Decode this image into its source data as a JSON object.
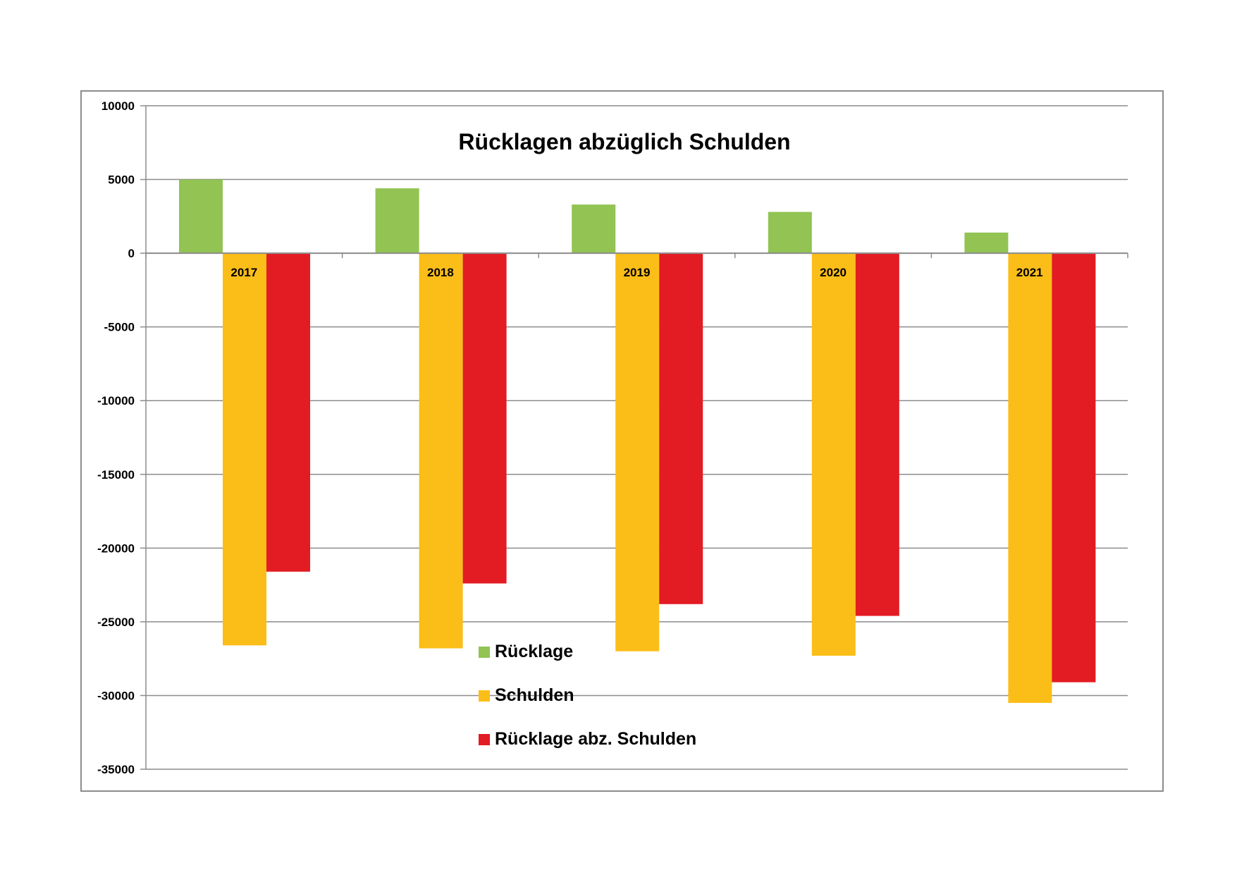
{
  "chart_data": {
    "type": "bar",
    "title": "Rücklagen abzüglich Schulden",
    "xlabel": "",
    "ylabel": "",
    "categories": [
      "2017",
      "2018",
      "2019",
      "2020",
      "2021"
    ],
    "series": [
      {
        "name": "Rücklage",
        "color": "#92c353",
        "values": [
          5000,
          4400,
          3300,
          2800,
          1400
        ]
      },
      {
        "name": "Schulden",
        "color": "#fbbe18",
        "values": [
          -26600,
          -26800,
          -27000,
          -27300,
          -30500
        ]
      },
      {
        "name": "Rücklage abz. Schulden",
        "color": "#e31b23",
        "values": [
          -21600,
          -22400,
          -23800,
          -24600,
          -29100
        ]
      }
    ],
    "ylim": [
      -35000,
      10000
    ],
    "yticks": [
      10000,
      5000,
      0,
      -5000,
      -10000,
      -15000,
      -20000,
      -25000,
      -30000,
      -35000
    ],
    "grid": true,
    "legend_position": "bottom-center"
  }
}
